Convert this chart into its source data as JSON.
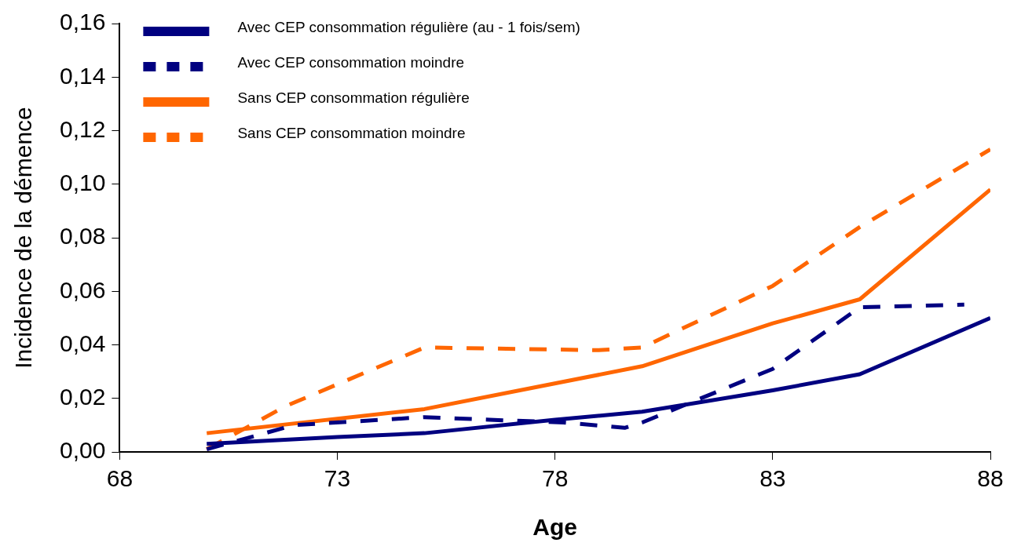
{
  "chart_data": {
    "type": "line",
    "xlabel": "Age",
    "ylabel": "Incidence de la démence",
    "xlim": [
      68,
      88
    ],
    "xticks": [
      68,
      73,
      78,
      83,
      88
    ],
    "ylim": [
      0,
      0.16
    ],
    "yticks": [
      {
        "value": 0,
        "label": "0,00"
      },
      {
        "value": 0.02,
        "label": "0,02"
      },
      {
        "value": 0.04,
        "label": "0,04"
      },
      {
        "value": 0.06,
        "label": "0,06"
      },
      {
        "value": 0.08,
        "label": "0,08"
      },
      {
        "value": 0.1,
        "label": "0,10"
      },
      {
        "value": 0.12,
        "label": "0,12"
      },
      {
        "value": 0.14,
        "label": "0,14"
      },
      {
        "value": 0.16,
        "label": "0,16"
      }
    ],
    "grid": false,
    "legend": "top",
    "marker": "none",
    "series": [
      {
        "name": "Avec CEP consommation régulière (au - 1 fois/sem)",
        "color": "#000080",
        "line_style": "solid",
        "x": [
          70,
          73,
          75,
          78,
          80,
          83,
          85,
          88
        ],
        "values": [
          0.003,
          0.0056,
          0.007,
          0.012,
          0.015,
          0.023,
          0.029,
          0.05
        ]
      },
      {
        "name": "Avec CEP consommation moindre",
        "color": "#000080",
        "line_style": "dashed",
        "x": [
          70,
          72,
          75,
          76.5,
          78.2,
          79.6,
          80,
          83,
          85,
          87.4
        ],
        "values": [
          0.001,
          0.01,
          0.013,
          0.012,
          0.011,
          0.009,
          0.011,
          0.031,
          0.054,
          0.055
        ]
      },
      {
        "name": "Sans CEP consommation régulière",
        "color": "#ff6600",
        "line_style": "solid",
        "x": [
          70,
          75,
          80,
          83,
          85,
          88
        ],
        "values": [
          0.007,
          0.016,
          0.032,
          0.048,
          0.057,
          0.098
        ]
      },
      {
        "name": "Sans CEP consommation moindre",
        "color": "#ff6600",
        "line_style": "dashed",
        "x": [
          70,
          71.8,
          75,
          79,
          80,
          83,
          85,
          88
        ],
        "values": [
          0.001,
          0.017,
          0.039,
          0.038,
          0.039,
          0.062,
          0.084,
          0.113
        ]
      }
    ]
  }
}
